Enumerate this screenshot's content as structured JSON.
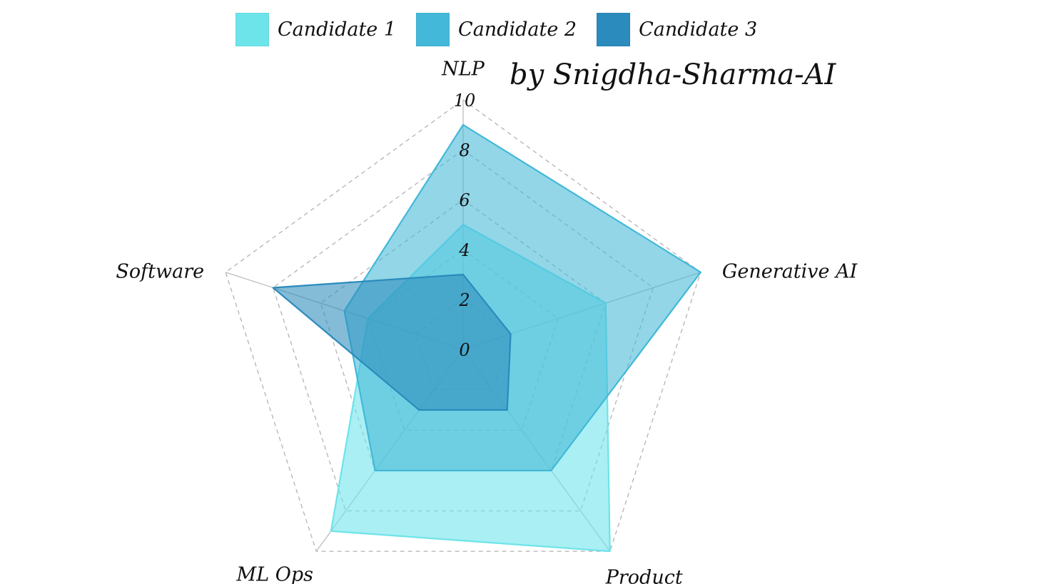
{
  "credit": "by Snigdha-Sharma-AI",
  "chart_data": {
    "type": "radar",
    "axes": [
      "NLP",
      "Generative AI",
      "Product",
      "ML Ops",
      "Software"
    ],
    "r_ticks": [
      "0",
      "2",
      "4",
      "6",
      "8",
      "10"
    ],
    "r_range": [
      0,
      10
    ],
    "grid": true,
    "legend_position": "top",
    "series": [
      {
        "name": "Candidate 1",
        "values": [
          5,
          6,
          10,
          9,
          4
        ],
        "color": "#6ce4ea"
      },
      {
        "name": "Candidate 2",
        "values": [
          9,
          10,
          6,
          6,
          5
        ],
        "color": "#43b8d8"
      },
      {
        "name": "Candidate 3",
        "values": [
          3,
          2,
          3,
          3,
          8
        ],
        "color": "#2b8bbc"
      }
    ]
  }
}
